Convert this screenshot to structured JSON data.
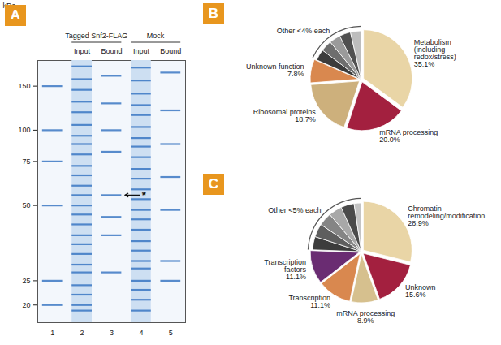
{
  "panel_labels": [
    "A",
    "B",
    "C"
  ],
  "gel": {
    "marker_axis_label": "kDa",
    "markers": [
      150,
      100,
      75,
      50,
      25,
      20
    ],
    "ylim": [
      17,
      190
    ],
    "log": true,
    "lane_numbers": [
      1,
      2,
      3,
      4,
      5
    ],
    "lane_labels": [
      null,
      "Input",
      "Bound",
      "Input",
      "Bound"
    ],
    "groups": [
      {
        "label": "Tagged Snf2-FLAG",
        "lanes": [
          2,
          3
        ]
      },
      {
        "label": "Mock",
        "lanes": [
          4,
          5
        ]
      }
    ],
    "smear_lanes": [
      2,
      4
    ],
    "lanes": [
      {
        "lane": 1,
        "bands": [
          150,
          100,
          75,
          50,
          25,
          20
        ]
      },
      {
        "lane": 2,
        "bands": [
          180,
          160,
          145,
          130,
          118,
          105,
          95,
          88,
          80,
          72,
          66,
          60,
          55,
          50,
          46,
          42,
          38,
          35,
          32,
          29,
          27,
          24,
          22,
          20,
          19
        ]
      },
      {
        "lane": 3,
        "bands": [
          165,
          128,
          100,
          82,
          55,
          45,
          38,
          27
        ]
      },
      {
        "lane": 4,
        "bands": [
          178,
          158,
          140,
          126,
          115,
          103,
          93,
          86,
          78,
          70,
          64,
          58,
          53,
          48,
          44,
          40,
          36,
          33,
          30,
          28,
          25,
          23,
          21,
          19
        ]
      },
      {
        "lane": 5,
        "bands": [
          170,
          120,
          88,
          65,
          48,
          30,
          25
        ]
      }
    ],
    "arrow": {
      "lane": 3,
      "kda": 55,
      "label": "*"
    }
  },
  "chart_data": [
    {
      "type": "pie",
      "categories": [
        "Metabolism (including redox/stress)",
        "mRNA processing",
        "Ribosomal proteins",
        "Unknown function",
        null,
        null,
        null,
        null,
        null
      ],
      "values": [
        35.1,
        20.0,
        18.7,
        7.8,
        3.7,
        3.7,
        3.7,
        3.7,
        3.6
      ],
      "value_labels": [
        "35.1%",
        "20.0%",
        "18.7%",
        "7.8%",
        null,
        null,
        null,
        null,
        null
      ],
      "colors": [
        "#e9d5a6",
        "#a3203f",
        "#cdb07c",
        "#d9884f",
        "#3c3c3c",
        "#6e6e6e",
        "#9a9a9a",
        "#505050",
        "#bdbdbd"
      ],
      "data_labels": true,
      "annotation": "Other <4% each"
    },
    {
      "type": "pie",
      "categories": [
        "Chromatin remodeling/modification",
        "Unknown",
        "mRNA processing",
        "Transcription",
        "Transcription factors",
        null,
        null,
        null,
        null,
        null,
        null
      ],
      "values": [
        28.9,
        15.6,
        8.9,
        11.1,
        11.1,
        4.4,
        4.4,
        4.4,
        4.4,
        4.4,
        2.4
      ],
      "value_labels": [
        "28.9%",
        "15.6%",
        "8.9%",
        "11.1%",
        "11.1%",
        null,
        null,
        null,
        null,
        null,
        null
      ],
      "colors": [
        "#e9d5a6",
        "#a3203f",
        "#d6c08e",
        "#d9884f",
        "#6a2c72",
        "#3c3c3c",
        "#5e5e5e",
        "#858585",
        "#a8a8a8",
        "#4a4a4a",
        "#c4c4c4"
      ],
      "data_labels": true,
      "annotation": "Other <5% each"
    }
  ]
}
